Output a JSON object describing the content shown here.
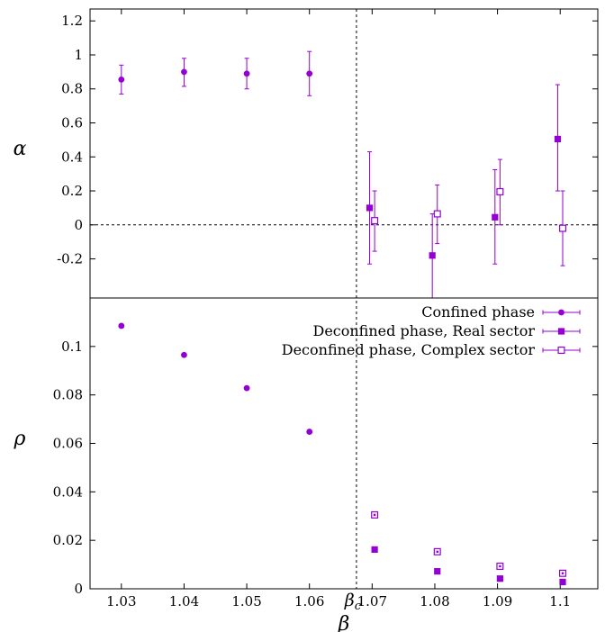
{
  "colors": {
    "series": "#9400d3",
    "axis": "#000000",
    "background": "#ffffff"
  },
  "chart_data": [
    {
      "type": "scatter",
      "panel": "top",
      "ylabel": "α",
      "xlim": [
        1.025,
        1.106
      ],
      "ylim": [
        -0.43,
        1.27
      ],
      "yticks": [
        -0.2,
        0,
        0.2,
        0.4,
        0.6,
        0.8,
        1,
        1.2
      ],
      "ytick_labels": [
        "-0.2",
        "0",
        "0.2",
        "0.4",
        "0.6",
        "0.8",
        "1",
        "1.2"
      ],
      "reference_line": {
        "y": 0,
        "style": "dashed"
      },
      "series": [
        {
          "name": "Confined phase",
          "marker": "filled-circle",
          "x": [
            1.03,
            1.04,
            1.05,
            1.06
          ],
          "y": [
            0.855,
            0.9,
            0.89,
            0.89
          ],
          "yerr_low": [
            0.77,
            0.815,
            0.8,
            0.76
          ],
          "yerr_high": [
            0.94,
            0.98,
            0.98,
            1.02
          ]
        },
        {
          "name": "Deconfined phase, Real sector",
          "marker": "filled-square",
          "x": [
            1.0696,
            1.0796,
            1.0896,
            1.0996
          ],
          "y": [
            0.1,
            -0.18,
            0.045,
            0.505
          ],
          "yerr_low": [
            -0.23,
            -0.43,
            -0.23,
            0.2
          ],
          "yerr_high": [
            0.43,
            0.065,
            0.325,
            0.825
          ]
        },
        {
          "name": "Deconfined phase, Complex sector",
          "marker": "open-square",
          "x": [
            1.0704,
            1.0804,
            1.0904,
            1.1004
          ],
          "y": [
            0.025,
            0.065,
            0.195,
            -0.02
          ],
          "yerr_low": [
            -0.155,
            -0.11,
            0.0,
            -0.24
          ],
          "yerr_high": [
            0.2,
            0.235,
            0.385,
            0.2
          ]
        }
      ]
    },
    {
      "type": "scatter",
      "panel": "bottom",
      "ylabel": "ρ",
      "xlabel": "β",
      "xlim": [
        1.025,
        1.106
      ],
      "ylim": [
        0,
        0.12
      ],
      "yticks": [
        0,
        0.02,
        0.04,
        0.06,
        0.08,
        0.1
      ],
      "ytick_labels": [
        "0",
        "0.02",
        "0.04",
        "0.06",
        "0.08",
        "0.1"
      ],
      "xticks": [
        1.03,
        1.04,
        1.05,
        1.06,
        1.07,
        1.08,
        1.09,
        1.1
      ],
      "xtick_labels": [
        "1.03",
        "1.04",
        "1.05",
        "1.06",
        "1.07",
        "1.08",
        "1.09",
        "1.1"
      ],
      "vline": {
        "x": 1.0675,
        "label": "βc",
        "style": "dashed"
      },
      "legend": {
        "position": "top-right",
        "entries": [
          "Confined phase",
          "Deconfined phase, Real sector",
          "Deconfined phase, Complex sector"
        ]
      },
      "series": [
        {
          "name": "Confined phase",
          "marker": "filled-circle",
          "x": [
            1.03,
            1.04,
            1.05,
            1.06
          ],
          "y": [
            0.1085,
            0.0965,
            0.0828,
            0.0648
          ]
        },
        {
          "name": "Deconfined phase, Real sector",
          "marker": "filled-square",
          "x": [
            1.0704,
            1.0804,
            1.0904,
            1.1004
          ],
          "y": [
            0.0162,
            0.0072,
            0.0042,
            0.0028
          ]
        },
        {
          "name": "Deconfined phase, Complex sector",
          "marker": "open-square",
          "x": [
            1.0704,
            1.0804,
            1.0904,
            1.1004
          ],
          "y": [
            0.0305,
            0.0153,
            0.0093,
            0.0064
          ]
        }
      ]
    }
  ]
}
